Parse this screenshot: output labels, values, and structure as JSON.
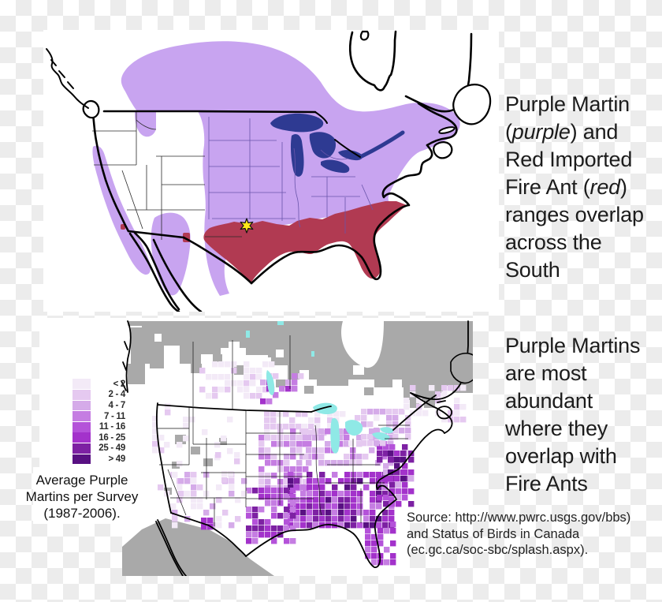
{
  "colors": {
    "martin_range": "#c8a4f0",
    "fire_ant_range": "#b13a52",
    "lakes_navy": "#2e3a92",
    "star_yellow": "#ffe81a",
    "no_data_gray": "#a9a9a9",
    "water_cyan": "#8fe9e6",
    "text": "#1c1c1c"
  },
  "headline_top": {
    "lines": [
      [
        {
          "t": "Purple Martin"
        }
      ],
      [
        {
          "t": "("
        },
        {
          "t": "purple",
          "i": true
        },
        {
          "t": ") and"
        }
      ],
      [
        {
          "t": "Red Imported"
        }
      ],
      [
        {
          "t": "Fire Ant ("
        },
        {
          "t": "red",
          "i": true
        },
        {
          "t": ")"
        }
      ],
      [
        {
          "t": "ranges overlap"
        }
      ],
      [
        {
          "t": "across the"
        }
      ],
      [
        {
          "t": "South"
        }
      ]
    ]
  },
  "headline_bottom": {
    "lines": [
      [
        {
          "t": "Purple Martins"
        }
      ],
      [
        {
          "t": "are most"
        }
      ],
      [
        {
          "t": "abundant"
        }
      ],
      [
        {
          "t": "where they"
        }
      ],
      [
        {
          "t": "overlap with"
        }
      ],
      [
        {
          "t": "Fire Ants"
        }
      ]
    ]
  },
  "source": {
    "lines": [
      "Source: http://www.pwrc.usgs.gov/bbs)",
      "and Status of Birds in Canada",
      "(ec.gc.ca/soc-sbc/splash.aspx)."
    ]
  },
  "legend": {
    "items": [
      {
        "label": "< 2",
        "color": "#f3eaf7"
      },
      {
        "label": "2 - 4",
        "color": "#e5c9f0"
      },
      {
        "label": "4 - 7",
        "color": "#d5abe9"
      },
      {
        "label": "7 - 11",
        "color": "#c57de2"
      },
      {
        "label": "11 - 16",
        "color": "#b452d9"
      },
      {
        "label": "16 - 25",
        "color": "#a332cb"
      },
      {
        "label": "25 - 49",
        "color": "#7d21a3"
      },
      {
        "label": "> 49",
        "color": "#581082"
      }
    ],
    "caption_lines": [
      "Average Purple",
      "Martins per Survey",
      "(1987-2006)."
    ]
  },
  "top_map": {
    "description": "Range map of North America: Purple Martin breeding range in purple, Red Imported Fire Ant range in red, Great Lakes in navy, yellow star marker in southern Oklahoma / north Texas"
  },
  "bottom_map": {
    "description": "Breeding Bird Survey relative abundance map: purple grid squares densest across the southeastern US, gray indicates areas not surveyed, cyan lakes"
  }
}
